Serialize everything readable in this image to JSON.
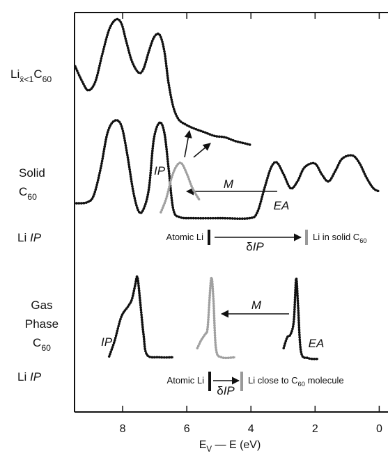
{
  "chart_data": {
    "type": "line",
    "xlabel": [
      "E",
      {
        "text": "V",
        "style": "sub"
      },
      " — E (eV)"
    ],
    "xlim": [
      9.5,
      -0.1
    ],
    "xticks": [
      8,
      6,
      4,
      2,
      0
    ],
    "panels": [
      {
        "label": [
          [
            "Li",
            {
              "text": "x̄<1",
              "style": "sub"
            },
            "C",
            {
              "text": "60",
              "style": "sub"
            }
          ]
        ],
        "ylim": [
          0,
          1
        ],
        "series": [
          {
            "color": "#111111",
            "x": [
              9.48,
              9.26,
              9.07,
              8.85,
              8.64,
              8.42,
              8.21,
              8.04,
              7.89,
              7.71,
              7.5,
              7.35,
              7.18,
              7.02,
              6.85,
              6.7,
              6.57,
              6.42,
              6.25,
              6.03,
              5.78,
              5.45,
              5.13,
              4.81,
              4.49,
              4.16,
              4.01
            ],
            "values": [
              0.63,
              0.51,
              0.44,
              0.51,
              0.72,
              0.92,
              1.0,
              0.97,
              0.83,
              0.67,
              0.58,
              0.61,
              0.75,
              0.86,
              0.88,
              0.75,
              0.5,
              0.31,
              0.21,
              0.17,
              0.14,
              0.11,
              0.08,
              0.07,
              0.04,
              0.02,
              0.01
            ]
          }
        ]
      },
      {
        "label": [
          [
            "Solid"
          ],
          [
            "C",
            {
              "text": "60",
              "style": "sub"
            }
          ]
        ],
        "ylim": [
          0,
          1
        ],
        "series": [
          {
            "color": "#111111",
            "x": [
              9.44,
              9.11,
              8.9,
              8.68,
              8.47,
              8.25,
              8.04,
              7.86,
              7.67,
              7.5,
              7.35,
              7.18,
              7.03,
              6.85,
              6.7,
              6.57,
              6.42,
              6.21,
              5.78,
              4.92,
              4.05,
              3.8,
              3.58,
              3.37,
              3.19,
              2.98,
              2.76,
              2.55,
              2.33,
              2.01,
              1.79,
              1.58,
              1.36,
              1.15,
              0.83,
              0.61,
              0.4,
              0.18,
              0.0
            ],
            "values": [
              0.16,
              0.17,
              0.24,
              0.52,
              0.87,
              0.99,
              0.94,
              0.66,
              0.28,
              0.08,
              0.1,
              0.31,
              0.8,
              0.97,
              0.87,
              0.52,
              0.1,
              0.02,
              0.01,
              0.01,
              0.01,
              0.07,
              0.31,
              0.52,
              0.57,
              0.45,
              0.31,
              0.38,
              0.52,
              0.56,
              0.45,
              0.38,
              0.49,
              0.61,
              0.64,
              0.56,
              0.42,
              0.31,
              0.28
            ]
          },
          {
            "color": "#a0a0a0",
            "x": [
              6.81,
              6.64,
              6.47,
              6.31,
              6.16,
              5.99,
              5.82,
              5.6
            ],
            "values": [
              0.07,
              0.21,
              0.42,
              0.54,
              0.56,
              0.45,
              0.31,
              0.19
            ]
          }
        ]
      },
      {
        "label": [
          [
            "Li ",
            {
              "text": "IP",
              "style": "italic"
            }
          ]
        ],
        "ylim": [
          0,
          1
        ],
        "series": []
      },
      {
        "label": [
          [
            "Gas"
          ],
          [
            "Phase"
          ],
          [
            "C",
            {
              "text": "60",
              "style": "sub"
            }
          ]
        ],
        "ylim": [
          0,
          1
        ],
        "series": [
          {
            "color": "#111111",
            "x": [
              8.42,
              8.25,
              8.04,
              7.82,
              7.71,
              7.61,
              7.54,
              7.46,
              7.35,
              7.24,
              6.85,
              6.42
            ],
            "values": [
              0.04,
              0.23,
              0.52,
              0.65,
              0.73,
              0.9,
              1.0,
              0.73,
              0.31,
              0.06,
              0.03,
              0.03
            ]
          },
          {
            "color": "#a0a0a0",
            "x": [
              5.67,
              5.56,
              5.43,
              5.35,
              5.24,
              5.17,
              5.09,
              4.92,
              4.49
            ],
            "values": [
              0.14,
              0.23,
              0.31,
              0.39,
              0.98,
              0.73,
              0.14,
              0.03,
              0.03
            ]
          },
          {
            "color": "#111111",
            "x": [
              2.98,
              2.87,
              2.76,
              2.66,
              2.59,
              2.53,
              2.44,
              2.22,
              1.9
            ],
            "values": [
              0.14,
              0.27,
              0.31,
              0.48,
              0.98,
              0.65,
              0.1,
              0.02,
              0.01
            ]
          }
        ]
      },
      {
        "label": [
          [
            "Li ",
            {
              "text": "IP",
              "style": "italic"
            }
          ]
        ],
        "ylim": [
          0,
          1
        ],
        "series": []
      }
    ],
    "annotations": [
      [
        {
          "text": "IP",
          "style": "italic"
        }
      ],
      [
        {
          "text": "M",
          "style": "italic"
        }
      ],
      [
        {
          "text": "EA",
          "style": "italic"
        }
      ],
      [
        "Atomic Li"
      ],
      [
        "δ",
        {
          "text": "IP",
          "style": "italic"
        }
      ],
      [
        "Li in solid C",
        {
          "text": "60",
          "style": "sub"
        }
      ],
      [
        {
          "text": "IP",
          "style": "italic"
        }
      ],
      [
        {
          "text": "M",
          "style": "italic"
        }
      ],
      [
        {
          "text": "EA",
          "style": "italic"
        }
      ],
      [
        "Atomic Li"
      ],
      [
        "δ",
        {
          "text": "IP",
          "style": "italic"
        }
      ],
      [
        "Li close to C",
        {
          "text": "60",
          "style": "sub"
        },
        " molecule"
      ]
    ]
  }
}
